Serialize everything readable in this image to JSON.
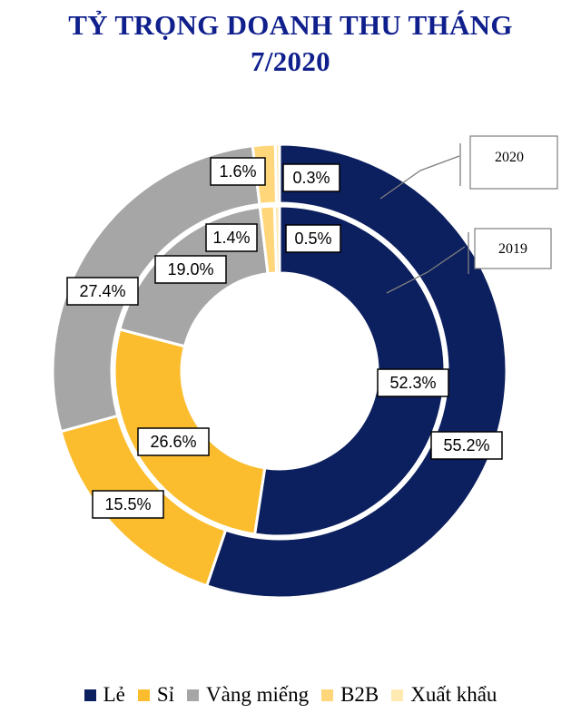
{
  "title_line1": "TỶ TRỌNG DOANH THU THÁNG",
  "title_line2": "7/2020",
  "chart_data": {
    "type": "donut",
    "title": "TỶ TRỌNG DOANH THU THÁNG 7/2020",
    "categories": [
      "Lẻ",
      "Sỉ",
      "Vàng miếng",
      "B2B",
      "Xuất khẩu"
    ],
    "colors": [
      "#0c1f5e",
      "#fbbd2e",
      "#a6a6a6",
      "#ffd67a",
      "#ffeab2"
    ],
    "series": [
      {
        "name": "2020",
        "ring": "outer",
        "values": [
          55.2,
          15.5,
          27.4,
          1.6,
          0.3
        ],
        "labels": [
          "55.2%",
          "15.5%",
          "27.4%",
          "1.6%",
          "0.3%"
        ]
      },
      {
        "name": "2019",
        "ring": "inner",
        "values": [
          52.3,
          26.6,
          19.0,
          1.4,
          0.5
        ],
        "labels": [
          "52.3%",
          "26.6%",
          "19.0%",
          "1.4%",
          "0.5%"
        ]
      }
    ],
    "legend_position": "bottom"
  }
}
